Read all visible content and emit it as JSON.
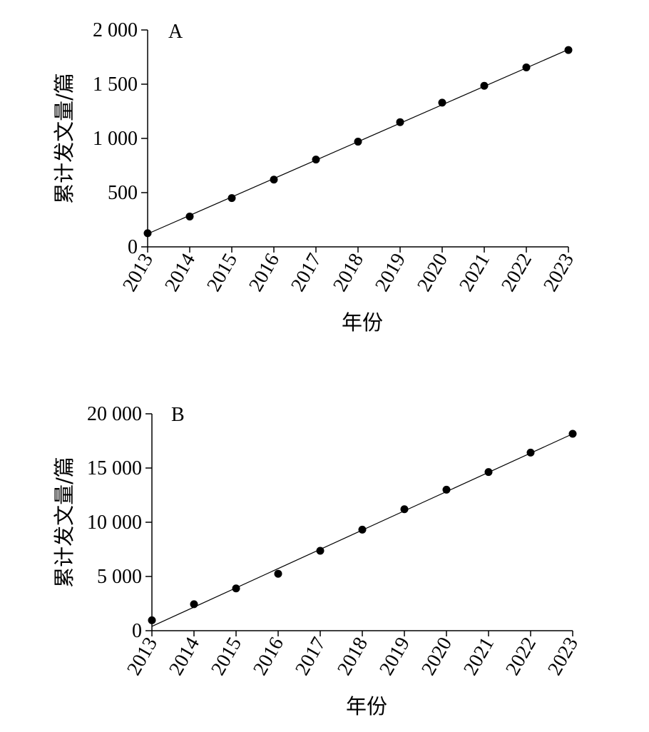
{
  "chart_data": [
    {
      "type": "line",
      "panel_label": "A",
      "xlabel": "年份",
      "ylabel": "累计发文量/篇",
      "categories": [
        "2013",
        "2014",
        "2015",
        "2016",
        "2017",
        "2018",
        "2019",
        "2020",
        "2021",
        "2022",
        "2023"
      ],
      "ylim": [
        0,
        2000
      ],
      "yticks": [
        0,
        500,
        1000,
        1500,
        2000
      ],
      "ytick_labels": [
        "0",
        "500",
        "1 000",
        "1 500",
        "2 000"
      ],
      "series": [
        {
          "values": [
            126,
            280,
            450,
            620,
            805,
            970,
            1150,
            1330,
            1485,
            1655,
            1815
          ]
        }
      ],
      "fit_line": {
        "start": 120,
        "end": 1820
      },
      "grid": false
    },
    {
      "type": "line",
      "panel_label": "B",
      "xlabel": "年份",
      "ylabel": "累计发文量/篇",
      "categories": [
        "2013",
        "2014",
        "2015",
        "2016",
        "2017",
        "2018",
        "2019",
        "2020",
        "2021",
        "2022",
        "2023"
      ],
      "ylim": [
        0,
        20000
      ],
      "yticks": [
        0,
        5000,
        10000,
        15000,
        20000
      ],
      "ytick_labels": [
        "0",
        "5 000",
        "10 000",
        "15 000",
        "20 000"
      ],
      "series": [
        {
          "values": [
            960,
            2440,
            3900,
            5250,
            7370,
            9320,
            11200,
            13000,
            14630,
            16420,
            18160
          ]
        }
      ],
      "fit_line": {
        "start": 400,
        "end": 18150
      },
      "grid": false
    }
  ]
}
